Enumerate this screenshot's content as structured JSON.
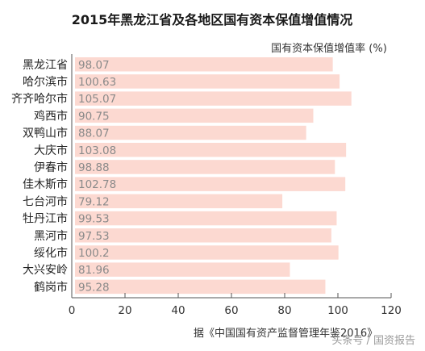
{
  "chart_data": {
    "type": "bar",
    "orientation": "horizontal",
    "title": "2015年黑龙江省及各地区国有资本保值增值情况",
    "unit_label": "国有资本保值增值率 (%)",
    "categories": [
      "黑龙江省",
      "哈尔滨市",
      "齐齐哈尔市",
      "鸡西市",
      "双鸭山市",
      "大庆市",
      "伊春市",
      "佳木斯市",
      "七台河市",
      "牡丹江市",
      "黑河市",
      "绥化市",
      "大兴安岭",
      "鹤岗市"
    ],
    "values": [
      98.07,
      100.63,
      105.07,
      90.75,
      88.07,
      103.08,
      98.88,
      102.78,
      79.12,
      99.53,
      97.53,
      100.2,
      81.96,
      95.28
    ],
    "value_labels": [
      "98.07",
      "100.63",
      "105.07",
      "90.75",
      "88.07",
      "103.08",
      "98.88",
      "102.78",
      "79.12",
      "99.53",
      "97.53",
      "100.2",
      "81.96",
      "95.28"
    ],
    "xlim": [
      0,
      120
    ],
    "xticks": [
      "0",
      "20",
      "40",
      "60",
      "80",
      "100",
      "120"
    ],
    "grid": false,
    "source": "据《中国国有资产监督管理年鉴2016》",
    "watermark": "头条号 / 国资报告",
    "colors": {
      "bar": "#fcd9d1",
      "axis": "#555555"
    }
  }
}
